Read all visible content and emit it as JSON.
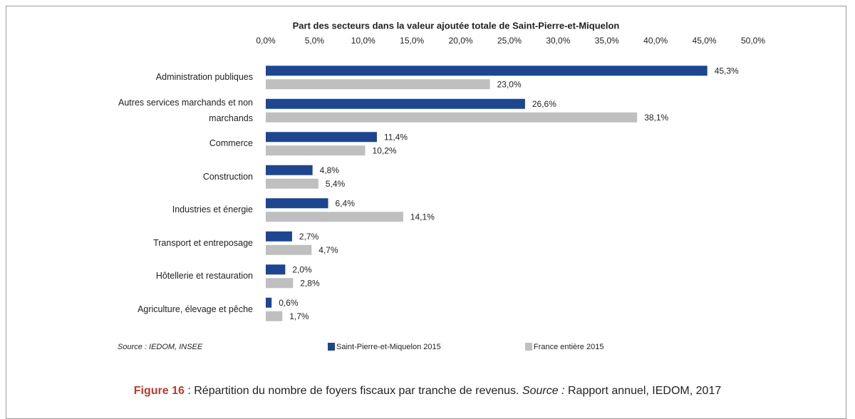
{
  "chart_data": {
    "type": "barh",
    "title": "Part des secteurs dans la valeur ajoutée totale de Saint-Pierre-et-Miquelon",
    "categories": [
      "Administration publiques",
      "Autres services marchands et non marchands",
      "Commerce",
      "Construction",
      "Industries et énergie",
      "Transport et entreposage",
      "Hôtellerie et restauration",
      "Agriculture, élevage et pêche"
    ],
    "series": [
      {
        "name": "Saint-Pierre-et-Miquelon 2015",
        "color": "#1c4691",
        "values": [
          45.3,
          26.6,
          11.4,
          4.8,
          6.4,
          2.7,
          2.0,
          0.6
        ],
        "value_labels": [
          "45,3%",
          "26,6%",
          "11,4%",
          "4,8%",
          "6,4%",
          "2,7%",
          "2,0%",
          "0,6%"
        ]
      },
      {
        "name": "France entière 2015",
        "color": "#bfbfbf",
        "values": [
          23.0,
          38.1,
          10.2,
          5.4,
          14.1,
          4.7,
          2.8,
          1.7
        ],
        "value_labels": [
          "23,0%",
          "38,1%",
          "10,2%",
          "5,4%",
          "14,1%",
          "4,7%",
          "2,8%",
          "1,7%"
        ]
      }
    ],
    "xlim": [
      0,
      50
    ],
    "xticks": [
      {
        "value": 0,
        "label": "0,0%"
      },
      {
        "value": 5,
        "label": "5,0%"
      },
      {
        "value": 10,
        "label": "10,0%"
      },
      {
        "value": 15,
        "label": "15,0%"
      },
      {
        "value": 20,
        "label": "20,0%"
      },
      {
        "value": 25,
        "label": "25,0%"
      },
      {
        "value": 30,
        "label": "30,0%"
      },
      {
        "value": 35,
        "label": "35,0%"
      },
      {
        "value": 40,
        "label": "40,0%"
      },
      {
        "value": 45,
        "label": "45,0%"
      },
      {
        "value": 50,
        "label": "50,0%"
      }
    ],
    "grid": false,
    "source": "Source : IEDOM, INSEE"
  },
  "caption": {
    "figure_label": "Figure 16",
    "text": ": Répartition du nombre de foyers fiscaux par tranche de revenus.",
    "source_label": "Source :",
    "source_text": "Rapport annuel, IEDOM, 2017"
  }
}
